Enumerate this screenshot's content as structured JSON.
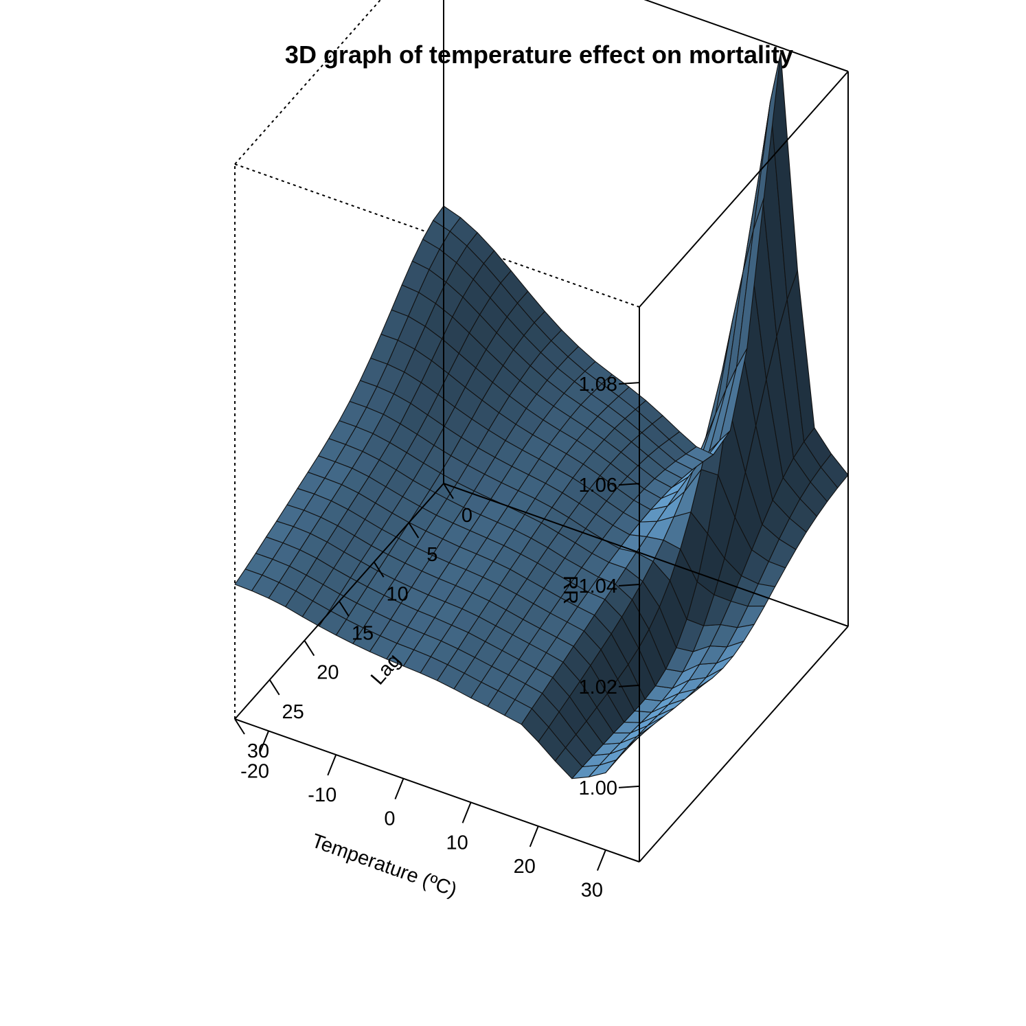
{
  "chart_data": {
    "type": "surface3d",
    "title": "3D graph of temperature effect on mortality",
    "x": {
      "label": "Temperature (ºC)",
      "range": [
        -25,
        35
      ],
      "ticks": [
        30,
        20,
        10,
        0,
        -10,
        -20
      ],
      "tick_labels": [
        "30",
        "20",
        "10",
        "0",
        "-10",
        "-20"
      ]
    },
    "y": {
      "label": "Lag",
      "range": [
        0,
        30
      ],
      "ticks": [
        0,
        5,
        10,
        15,
        20,
        25,
        30
      ],
      "tick_labels": [
        "0",
        "5",
        "10",
        "15",
        "20",
        "25",
        "30"
      ]
    },
    "z": {
      "label": "RR",
      "range": [
        0.985,
        1.095
      ],
      "ticks": [
        1.0,
        1.02,
        1.04,
        1.06,
        1.08
      ],
      "tick_labels": [
        "1.00",
        "1.02",
        "1.04",
        "1.06",
        "1.08"
      ]
    },
    "grid_temperature": [
      -25,
      -22.5,
      -20,
      -17.5,
      -15,
      -12.5,
      -10,
      -7.5,
      -5,
      -2.5,
      0,
      2.5,
      5,
      7.5,
      10,
      12.5,
      15,
      17.5,
      20,
      22.5,
      25,
      27.5,
      30,
      32.5,
      35
    ],
    "grid_lag": [
      0,
      1.5,
      3,
      4.5,
      6,
      7.5,
      9,
      10.5,
      12,
      13.5,
      15,
      16.5,
      18,
      19.5,
      21,
      22.5,
      24,
      25.5,
      27,
      28.5,
      30
    ],
    "values_rr": [
      [
        1.04,
        1.0395,
        1.0381,
        1.0361,
        1.0337,
        1.0311,
        1.0286,
        1.0262,
        1.0241,
        1.0223,
        1.0208,
        1.0196,
        1.0185,
        1.0176,
        1.0167,
        1.0158,
        1.0149,
        1.0141,
        1.0132,
        1.0124,
        1.0117
      ],
      [
        1.0389,
        1.0385,
        1.0373,
        1.0356,
        1.0334,
        1.031,
        1.0286,
        1.0262,
        1.0241,
        1.0223,
        1.0208,
        1.0196,
        1.0185,
        1.0176,
        1.0168,
        1.0159,
        1.015,
        1.0141,
        1.0132,
        1.0124,
        1.0116
      ],
      [
        1.0371,
        1.0368,
        1.0358,
        1.0343,
        1.0324,
        1.0302,
        1.028,
        1.0258,
        1.0238,
        1.0221,
        1.0206,
        1.0194,
        1.0184,
        1.0175,
        1.0166,
        1.0157,
        1.0148,
        1.0139,
        1.013,
        1.0121,
        1.0113
      ],
      [
        1.0347,
        1.0345,
        1.0337,
        1.0325,
        1.0309,
        1.0289,
        1.0269,
        1.0249,
        1.0231,
        1.0214,
        1.02,
        1.0189,
        1.0179,
        1.017,
        1.0161,
        1.0152,
        1.0143,
        1.0134,
        1.0124,
        1.0116,
        1.0108
      ],
      [
        1.0319,
        1.0318,
        1.0312,
        1.0302,
        1.0289,
        1.0272,
        1.0255,
        1.0237,
        1.022,
        1.0205,
        1.0192,
        1.0181,
        1.0171,
        1.0162,
        1.0153,
        1.0144,
        1.0135,
        1.0126,
        1.0117,
        1.0108,
        1.01
      ],
      [
        1.029,
        1.029,
        1.0286,
        1.0278,
        1.0268,
        1.0255,
        1.024,
        1.0224,
        1.0209,
        1.0195,
        1.0183,
        1.0172,
        1.0163,
        1.0154,
        1.0145,
        1.0136,
        1.0128,
        1.0119,
        1.011,
        1.0101,
        1.0093
      ],
      [
        1.0262,
        1.0263,
        1.0261,
        1.0256,
        1.0248,
        1.0238,
        1.0226,
        1.0212,
        1.0199,
        1.0186,
        1.0175,
        1.0165,
        1.0156,
        1.0147,
        1.0139,
        1.013,
        1.0121,
        1.0113,
        1.0104,
        1.0095,
        1.0087
      ],
      [
        1.0237,
        1.0239,
        1.0239,
        1.0236,
        1.023,
        1.0223,
        1.0213,
        1.0202,
        1.019,
        1.0179,
        1.0168,
        1.0159,
        1.015,
        1.0142,
        1.0133,
        1.0125,
        1.0116,
        1.0108,
        1.0099,
        1.009,
        1.0082
      ],
      [
        1.0216,
        1.0219,
        1.022,
        1.0219,
        1.0215,
        1.021,
        1.0202,
        1.0193,
        1.0183,
        1.0173,
        1.0163,
        1.0154,
        1.0146,
        1.0138,
        1.0129,
        1.0121,
        1.0112,
        1.0104,
        1.0095,
        1.0086,
        1.0078
      ],
      [
        1.0198,
        1.0202,
        1.0205,
        1.0205,
        1.0203,
        1.0199,
        1.0193,
        1.0186,
        1.0177,
        1.0168,
        1.0159,
        1.0151,
        1.0143,
        1.0134,
        1.0126,
        1.0118,
        1.0109,
        1.0101,
        1.0092,
        1.0083,
        1.0075
      ],
      [
        1.0184,
        1.0189,
        1.0192,
        1.0194,
        1.0193,
        1.019,
        1.0186,
        1.018,
        1.0172,
        1.0164,
        1.0156,
        1.0148,
        1.014,
        1.0132,
        1.0124,
        1.0116,
        1.0107,
        1.0099,
        1.009,
        1.0082,
        1.0073
      ],
      [
        1.0171,
        1.0176,
        1.018,
        1.0183,
        1.0183,
        1.0182,
        1.0179,
        1.0173,
        1.0167,
        1.016,
        1.0152,
        1.0145,
        1.0137,
        1.0129,
        1.0121,
        1.0113,
        1.0105,
        1.0096,
        1.0088,
        1.008,
        1.0071
      ],
      [
        1.0156,
        1.0162,
        1.0167,
        1.0171,
        1.0172,
        1.0172,
        1.017,
        1.0166,
        1.016,
        1.0154,
        1.0147,
        1.014,
        1.0132,
        1.0125,
        1.0117,
        1.0109,
        1.0101,
        1.0093,
        1.0084,
        1.0076,
        1.0068
      ],
      [
        1.0138,
        1.0145,
        1.0151,
        1.0156,
        1.0159,
        1.016,
        1.0159,
        1.0156,
        1.0151,
        1.0146,
        1.0139,
        1.0133,
        1.0126,
        1.0118,
        1.0111,
        1.0103,
        1.0095,
        1.0087,
        1.0079,
        1.0071,
        1.0063
      ],
      [
        1.0118,
        1.0126,
        1.0134,
        1.014,
        1.0144,
        1.0146,
        1.0146,
        1.0144,
        1.0141,
        1.0136,
        1.0131,
        1.0124,
        1.0118,
        1.0111,
        1.0104,
        1.0096,
        1.0089,
        1.0081,
        1.0073,
        1.0065,
        1.0057
      ],
      [
        1.01,
        1.0109,
        1.0118,
        1.0125,
        1.013,
        1.0133,
        1.0134,
        1.0133,
        1.0131,
        1.0127,
        1.0122,
        1.0117,
        1.0111,
        1.0104,
        1.0097,
        1.009,
        1.0083,
        1.0075,
        1.0068,
        1.006,
        1.0052
      ],
      [
        1.0096,
        1.0105,
        1.0113,
        1.0119,
        1.0124,
        1.0126,
        1.0127,
        1.0126,
        1.0124,
        1.012,
        1.0116,
        1.011,
        1.0104,
        1.0098,
        1.0091,
        1.0084,
        1.0077,
        1.0069,
        1.0062,
        1.0054,
        1.0046
      ],
      [
        1.0155,
        1.0159,
        1.0161,
        1.016,
        1.0157,
        1.0152,
        1.0146,
        1.0139,
        1.0132,
        1.0124,
        1.0116,
        1.0108,
        1.0101,
        1.0093,
        1.0085,
        1.0078,
        1.007,
        1.0063,
        1.0055,
        1.0048,
        1.004
      ],
      [
        1.033,
        1.0316,
        1.0296,
        1.0271,
        1.0243,
        1.0214,
        1.0186,
        1.016,
        1.0137,
        1.0118,
        1.0102,
        1.0089,
        1.0078,
        1.0068,
        1.006,
        1.0052,
        1.0044,
        1.0037,
        1.003,
        1.0023,
        1.0017
      ],
      [
        1.064,
        1.06,
        1.054,
        1.0468,
        1.039,
        1.0313,
        1.0242,
        1.0181,
        1.0131,
        1.0092,
        1.0063,
        1.0042,
        1.0028,
        1.0019,
        1.0013,
        1.0008,
        1.0004,
        1.0,
        0.9997,
        0.9994,
        0.9991
      ],
      [
        1.094,
        1.0866,
        1.0754,
        1.0622,
        1.0486,
        1.0357,
        1.0243,
        1.015,
        1.0078,
        1.0027,
        0.9994,
        0.9975,
        0.9965,
        0.9962,
        0.9962,
        0.9963,
        0.9965,
        0.9966,
        0.9967,
        0.9968,
        0.9968
      ],
      [
        1.052,
        1.0486,
        1.0436,
        1.0374,
        1.0306,
        1.0237,
        1.0171,
        1.0113,
        1.0064,
        1.0026,
        0.9998,
        0.9981,
        0.9972,
        0.997,
        0.9971,
        0.9974,
        0.9977,
        0.998,
        0.9982,
        0.9983,
        0.9983
      ],
      [
        1.022,
        1.0216,
        1.0207,
        1.0191,
        1.017,
        1.0145,
        1.0118,
        1.009,
        1.0063,
        1.004,
        1.0021,
        1.0008,
        1.0,
        0.9997,
        0.9998,
        1.0,
        1.0003,
        1.0005,
        1.0006,
        1.0005,
        1.0003
      ],
      [
        1.018,
        1.0177,
        1.0171,
        1.0161,
        1.0146,
        1.0128,
        1.0107,
        1.0086,
        1.0065,
        1.0046,
        1.0031,
        1.0022,
        1.0017,
        1.0017,
        1.0021,
        1.0027,
        1.0034,
        1.0041,
        1.0047,
        1.0051,
        1.0053
      ],
      [
        1.015,
        1.0148,
        1.0144,
        1.0138,
        1.013,
        1.0119,
        1.0106,
        1.0092,
        1.0077,
        1.0064,
        1.0054,
        1.0048,
        1.0047,
        1.0051,
        1.0059,
        1.0071,
        1.0086,
        1.0103,
        1.0121,
        1.0139,
        1.0157
      ]
    ]
  }
}
